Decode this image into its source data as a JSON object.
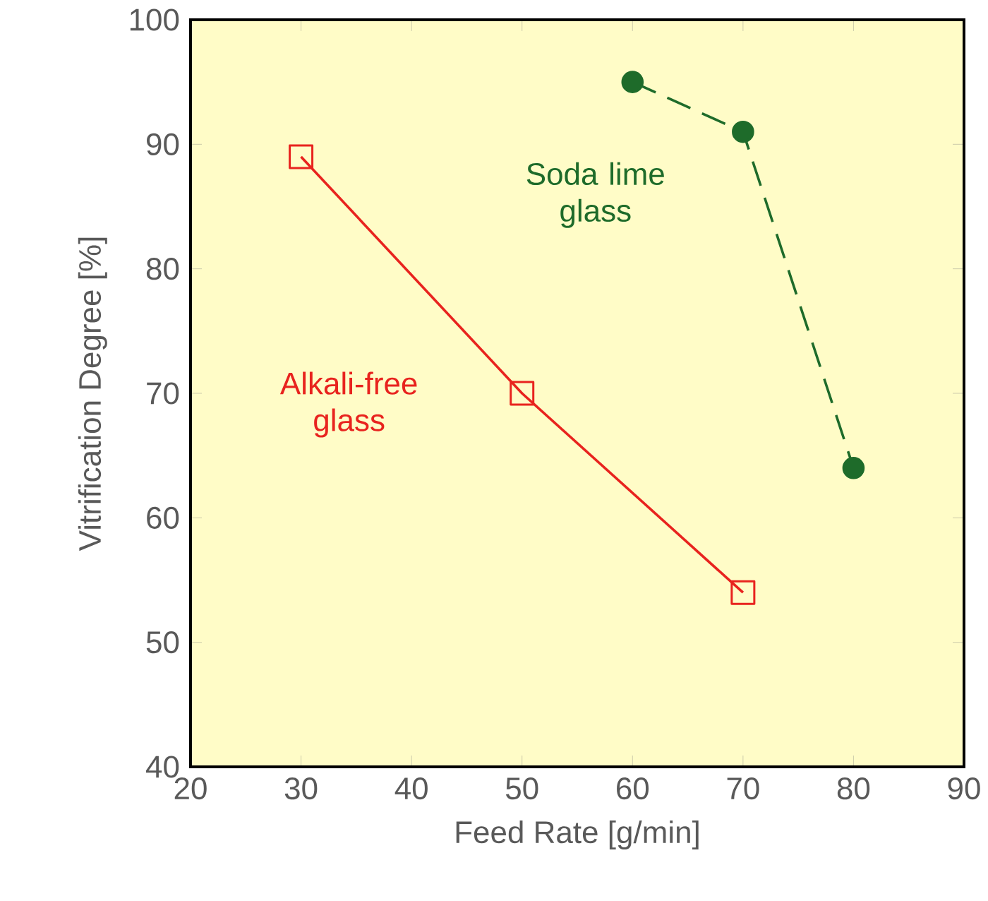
{
  "chart_data": {
    "type": "line",
    "xlabel": "Feed Rate [g/min]",
    "ylabel": "Vitrification Degree [%]",
    "xlim": [
      20,
      90
    ],
    "xticks": [
      20,
      30,
      40,
      50,
      60,
      70,
      80,
      90
    ],
    "ylim": [
      40,
      100
    ],
    "yticks": [
      40,
      50,
      60,
      70,
      80,
      90,
      100
    ],
    "series": [
      {
        "name": "Alkali-free glass",
        "color": "#e8231e",
        "marker": "square",
        "line_style": "solid",
        "x": [
          30,
          50,
          70
        ],
        "values": [
          89,
          70,
          54
        ]
      },
      {
        "name": "Soda lime glass",
        "color": "#1e6b2a",
        "marker": "circle",
        "line_style": "dashed",
        "x": [
          60,
          70,
          80
        ],
        "values": [
          95,
          91,
          64
        ]
      }
    ]
  }
}
